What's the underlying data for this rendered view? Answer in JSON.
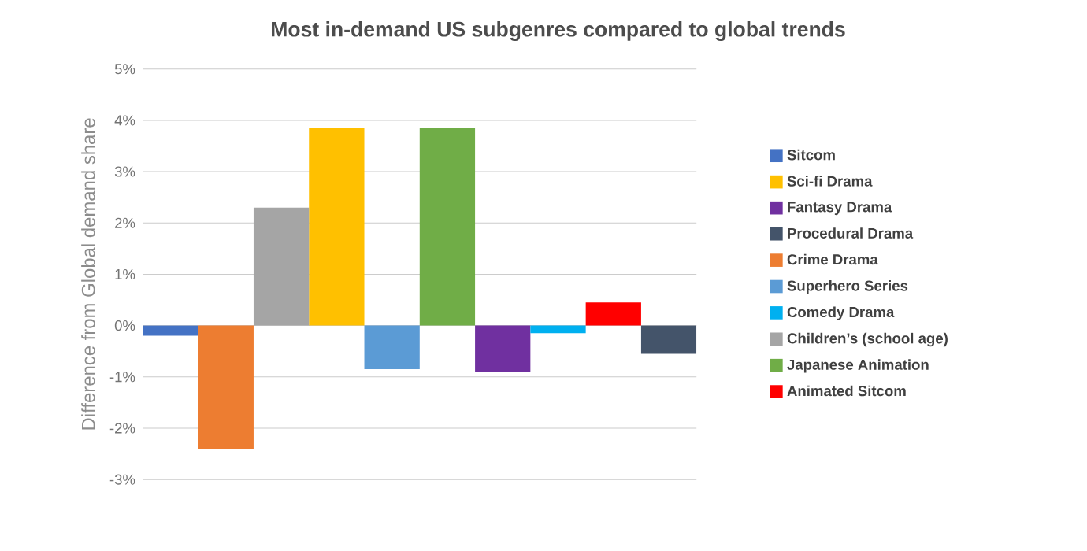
{
  "chart_data": {
    "type": "bar",
    "title": "Most in-demand US subgenres compared to global trends",
    "ylabel": "Difference from Global demand share",
    "categories": [
      null,
      null,
      null,
      null,
      null,
      null,
      null,
      null,
      null,
      null
    ],
    "series": [
      {
        "name": "Sitcom",
        "color": "#4472c4",
        "values": [
          -0.2,
          null,
          null,
          null,
          null,
          null,
          null,
          null,
          null,
          null
        ]
      },
      {
        "name": "Sci-fi Drama",
        "color": "#ffc000",
        "values": [
          null,
          null,
          null,
          3.85,
          null,
          null,
          null,
          null,
          null,
          null
        ]
      },
      {
        "name": "Fantasy Drama",
        "color": "#7030a0",
        "values": [
          null,
          null,
          null,
          null,
          null,
          null,
          -0.9,
          null,
          null,
          null
        ]
      },
      {
        "name": "Procedural Drama",
        "color": "#44546a",
        "values": [
          null,
          null,
          null,
          null,
          null,
          null,
          null,
          null,
          null,
          -0.55
        ]
      },
      {
        "name": "Crime Drama",
        "color": "#ed7d31",
        "values": [
          null,
          -2.4,
          null,
          null,
          null,
          null,
          null,
          null,
          null,
          null
        ]
      },
      {
        "name": "Superhero Series",
        "color": "#5b9bd5",
        "values": [
          null,
          null,
          null,
          null,
          -0.85,
          null,
          null,
          null,
          null,
          null
        ]
      },
      {
        "name": "Comedy Drama",
        "color": "#00b0f0",
        "values": [
          null,
          null,
          null,
          null,
          null,
          null,
          null,
          -0.15,
          null,
          null
        ]
      },
      {
        "name": "Children’s (school age)",
        "color": "#a5a5a5",
        "values": [
          null,
          null,
          2.3,
          null,
          null,
          null,
          null,
          null,
          null,
          null
        ]
      },
      {
        "name": "Japanese Animation",
        "color": "#70ad47",
        "values": [
          null,
          null,
          null,
          null,
          null,
          3.85,
          null,
          null,
          null,
          null
        ]
      },
      {
        "name": "Animated Sitcom",
        "color": "#ff0000",
        "values": [
          null,
          null,
          null,
          null,
          null,
          null,
          null,
          null,
          0.45,
          null
        ]
      }
    ],
    "ylim": [
      -3,
      5
    ],
    "yticks": [
      {
        "value": -3,
        "label": "-3%"
      },
      {
        "value": -2,
        "label": "-2%"
      },
      {
        "value": -1,
        "label": "-1%"
      },
      {
        "value": 0,
        "label": "0%"
      },
      {
        "value": 1,
        "label": "1%"
      },
      {
        "value": 2,
        "label": "2%"
      },
      {
        "value": 3,
        "label": "3%"
      },
      {
        "value": 4,
        "label": "4%"
      },
      {
        "value": 5,
        "label": "5%"
      }
    ],
    "grid": "y",
    "legend": "right"
  }
}
